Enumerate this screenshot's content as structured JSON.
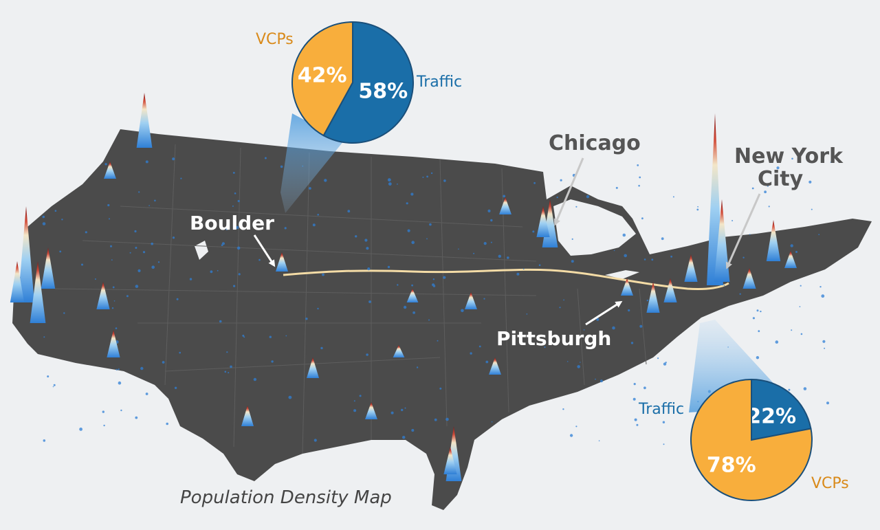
{
  "map": {
    "caption": "Population Density Map",
    "colors": {
      "background": "#eef0f2",
      "land": "#4b4b4b",
      "spike_low": "#2f7fd6",
      "spike_high": "#8b1a1a",
      "route": "#f4dca6",
      "traffic": "#1a6ea8",
      "vcps": "#f8ae3c",
      "dark_label": "#555555"
    }
  },
  "cities": [
    {
      "name": "Boulder"
    },
    {
      "name": "Chicago"
    },
    {
      "name": "New York City"
    },
    {
      "name": "Pittsburgh"
    }
  ],
  "chart_data": [
    {
      "type": "pie",
      "location": "Boulder",
      "slices": [
        {
          "name": "Traffic",
          "value": 58,
          "label": "58%"
        },
        {
          "name": "VCPs",
          "value": 42,
          "label": "42%"
        }
      ]
    },
    {
      "type": "pie",
      "location": "New York City",
      "slices": [
        {
          "name": "Traffic",
          "value": 22,
          "label": "22%"
        },
        {
          "name": "VCPs",
          "value": 78,
          "label": "78%"
        }
      ]
    }
  ]
}
